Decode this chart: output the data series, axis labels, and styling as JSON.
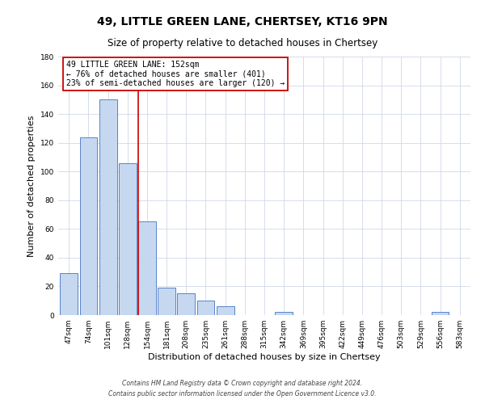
{
  "title": "49, LITTLE GREEN LANE, CHERTSEY, KT16 9PN",
  "subtitle": "Size of property relative to detached houses in Chertsey",
  "xlabel": "Distribution of detached houses by size in Chertsey",
  "ylabel": "Number of detached properties",
  "bar_labels": [
    "47sqm",
    "74sqm",
    "101sqm",
    "128sqm",
    "154sqm",
    "181sqm",
    "208sqm",
    "235sqm",
    "261sqm",
    "288sqm",
    "315sqm",
    "342sqm",
    "369sqm",
    "395sqm",
    "422sqm",
    "449sqm",
    "476sqm",
    "503sqm",
    "529sqm",
    "556sqm",
    "583sqm"
  ],
  "bar_values": [
    29,
    124,
    150,
    106,
    65,
    19,
    15,
    10,
    6,
    0,
    0,
    2,
    0,
    0,
    0,
    0,
    0,
    0,
    0,
    2,
    0
  ],
  "bar_color": "#c5d8f0",
  "bar_edge_color": "#4472c4",
  "vline_x_index": 4,
  "vline_color": "#cc0000",
  "ylim": [
    0,
    180
  ],
  "yticks": [
    0,
    20,
    40,
    60,
    80,
    100,
    120,
    140,
    160,
    180
  ],
  "annotation_title": "49 LITTLE GREEN LANE: 152sqm",
  "annotation_line1": "← 76% of detached houses are smaller (401)",
  "annotation_line2": "23% of semi-detached houses are larger (120) →",
  "annotation_box_color": "#cc0000",
  "footer1": "Contains HM Land Registry data © Crown copyright and database right 2024.",
  "footer2": "Contains public sector information licensed under the Open Government Licence v3.0.",
  "bg_color": "#ffffff",
  "grid_color": "#d0d8e8",
  "title_fontsize": 10,
  "subtitle_fontsize": 8.5,
  "axis_label_fontsize": 8,
  "tick_fontsize": 6.5,
  "annotation_fontsize": 7,
  "footer_fontsize": 5.5
}
